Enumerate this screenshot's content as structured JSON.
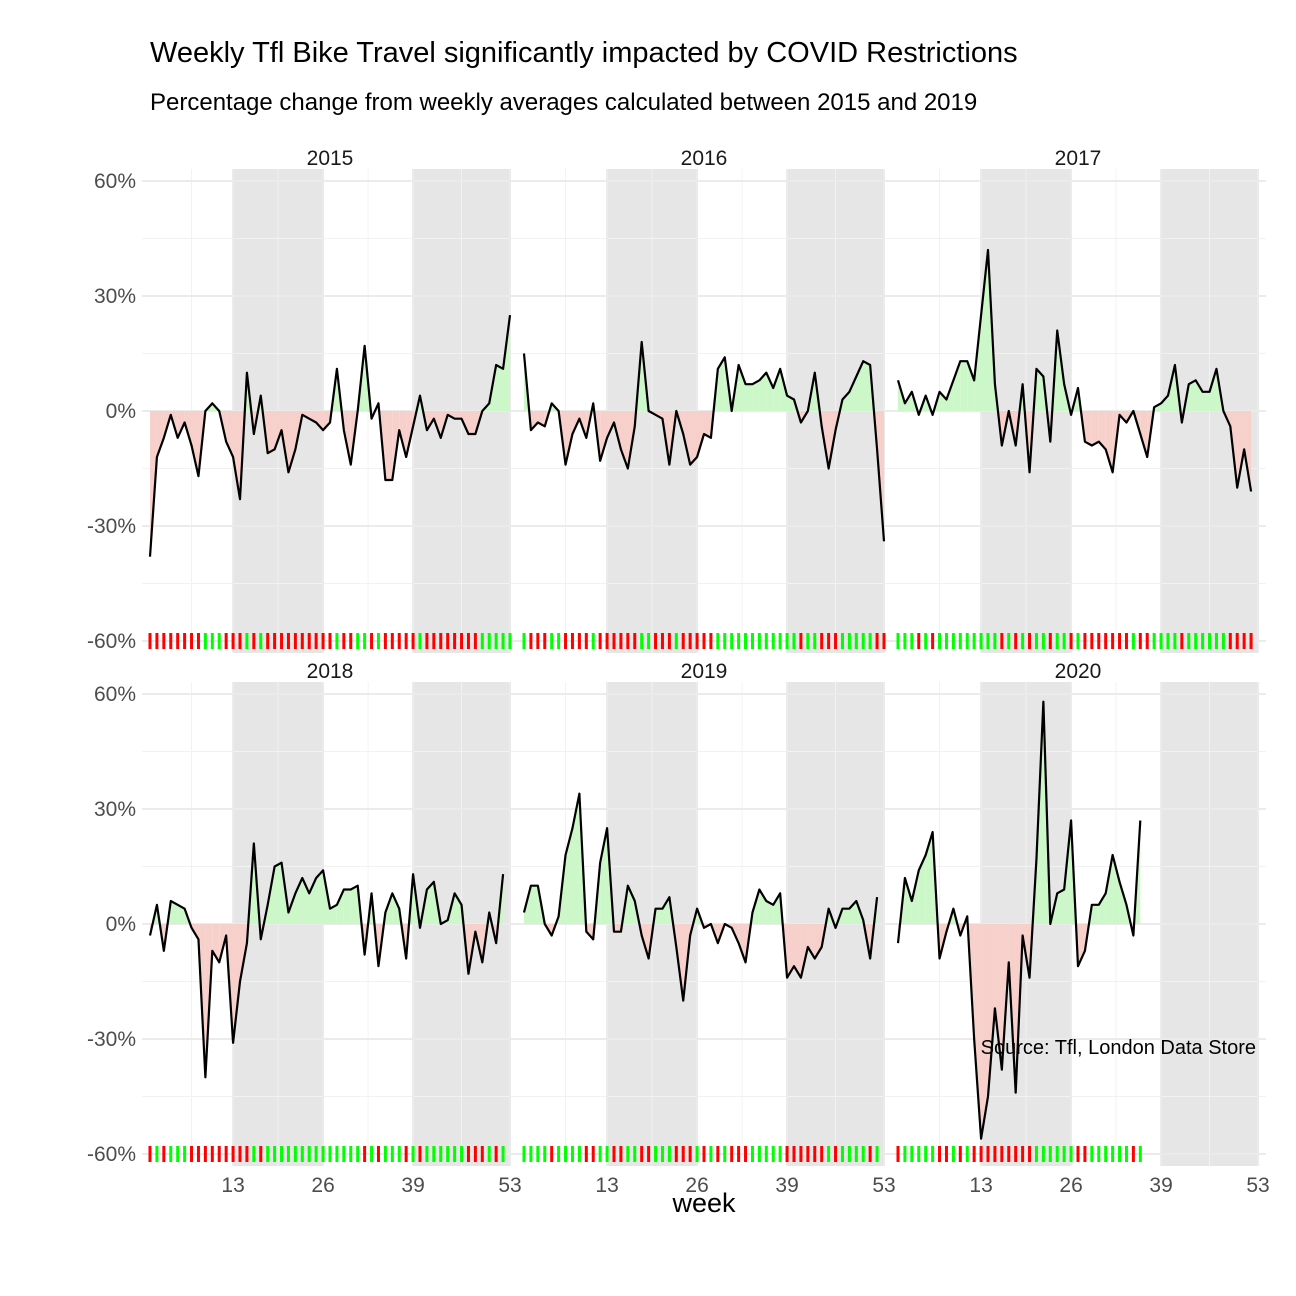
{
  "chart_data": {
    "type": "area",
    "title": "Weekly Tfl Bike Travel significantly impacted by COVID Restrictions",
    "subtitle": "Percentage change from weekly averages calculated between 2015 and 2019",
    "xlabel": "week",
    "ylabel": "",
    "caption": "Source: Tfl, London Data Store",
    "xlim": [
      1,
      53
    ],
    "ylim": [
      -60,
      60
    ],
    "x_ticks": [
      13,
      26,
      39,
      53
    ],
    "y_ticks": [
      60,
      30,
      0,
      -30,
      -60
    ],
    "y_tick_labels": [
      "60%",
      "30%",
      "0%",
      "-30%",
      "-60%"
    ],
    "shaded_week_ranges": [
      [
        13,
        26
      ],
      [
        39,
        53
      ]
    ],
    "colors": {
      "positive_fill": "#ccf7c8",
      "negative_fill": "#f7d0cb",
      "line": "#000000",
      "rug_positive": "#00ff00",
      "rug_negative": "#ff0000",
      "shade": "#e6e6e6",
      "grid": "#ebebeb"
    },
    "facets": [
      {
        "year": "2015",
        "values": [
          -38,
          -12,
          -7,
          -1,
          -7,
          -3,
          -9,
          -17,
          0,
          2,
          0,
          -8,
          -12,
          -23,
          10,
          -6,
          4,
          -11,
          -10,
          -5,
          -16,
          -10,
          -1,
          -2,
          -3,
          -5,
          -3,
          11,
          -5,
          -14,
          0,
          17,
          -2,
          2,
          -18,
          -18,
          -5,
          -12,
          -4,
          4,
          -5,
          -2,
          -7,
          -1,
          -2,
          -2,
          -6,
          -6,
          0,
          2,
          12,
          11,
          25
        ]
      },
      {
        "year": "2016",
        "values": [
          15,
          -5,
          -3,
          -4,
          2,
          0,
          -14,
          -6,
          -2,
          -7,
          2,
          -13,
          -7,
          -3,
          -10,
          -15,
          -4,
          18,
          0,
          -1,
          -2,
          -14,
          0,
          -6,
          -14,
          -12,
          -6,
          -7,
          11,
          14,
          0,
          12,
          7,
          7,
          8,
          10,
          6,
          11,
          4,
          3,
          -3,
          0,
          10,
          -4,
          -15,
          -5,
          3,
          5,
          9,
          13,
          12,
          -10,
          -34
        ]
      },
      {
        "year": "2017",
        "values": [
          8,
          2,
          5,
          -1,
          4,
          -1,
          5,
          3,
          8,
          13,
          13,
          8,
          25,
          42,
          7,
          -9,
          0,
          -9,
          7,
          -16,
          11,
          9,
          -8,
          21,
          7,
          -1,
          6,
          -8,
          -9,
          -8,
          -10,
          -16,
          -1,
          -3,
          0,
          -6,
          -12,
          1,
          2,
          4,
          12,
          -3,
          7,
          8,
          5,
          5,
          11,
          0,
          -4,
          -20,
          -10,
          -21
        ]
      },
      {
        "year": "2018",
        "values": [
          -3,
          5,
          -7,
          6,
          5,
          4,
          -1,
          -4,
          -40,
          -7,
          -10,
          -3,
          -31,
          -15,
          -5,
          21,
          -4,
          5,
          15,
          16,
          3,
          8,
          12,
          8,
          12,
          14,
          4,
          5,
          9,
          9,
          10,
          -8,
          8,
          -11,
          3,
          8,
          4,
          -9,
          13,
          -1,
          9,
          11,
          0,
          1,
          8,
          5,
          -13,
          -2,
          -10,
          3,
          -5,
          13
        ]
      },
      {
        "year": "2019",
        "values": [
          3,
          10,
          10,
          0,
          -3,
          2,
          18,
          25,
          34,
          -2,
          -4,
          16,
          25,
          -2,
          -2,
          10,
          6,
          -3,
          -9,
          4,
          4,
          7,
          -6,
          -20,
          -3,
          4,
          -1,
          0,
          -5,
          0,
          -1,
          -5,
          -10,
          3,
          9,
          6,
          5,
          8,
          -14,
          -11,
          -14,
          -6,
          -9,
          -6,
          4,
          -1,
          4,
          4,
          6,
          1,
          -9,
          7
        ]
      },
      {
        "year": "2020",
        "values": [
          -5,
          12,
          6,
          14,
          18,
          24,
          -9,
          -2,
          4,
          -3,
          2,
          -30,
          -56,
          -45,
          -22,
          -38,
          -10,
          -44,
          -3,
          -14,
          17,
          58,
          0,
          8,
          9,
          27,
          -11,
          -7,
          5,
          5,
          8,
          18,
          11,
          5,
          -3,
          27
        ]
      }
    ]
  }
}
